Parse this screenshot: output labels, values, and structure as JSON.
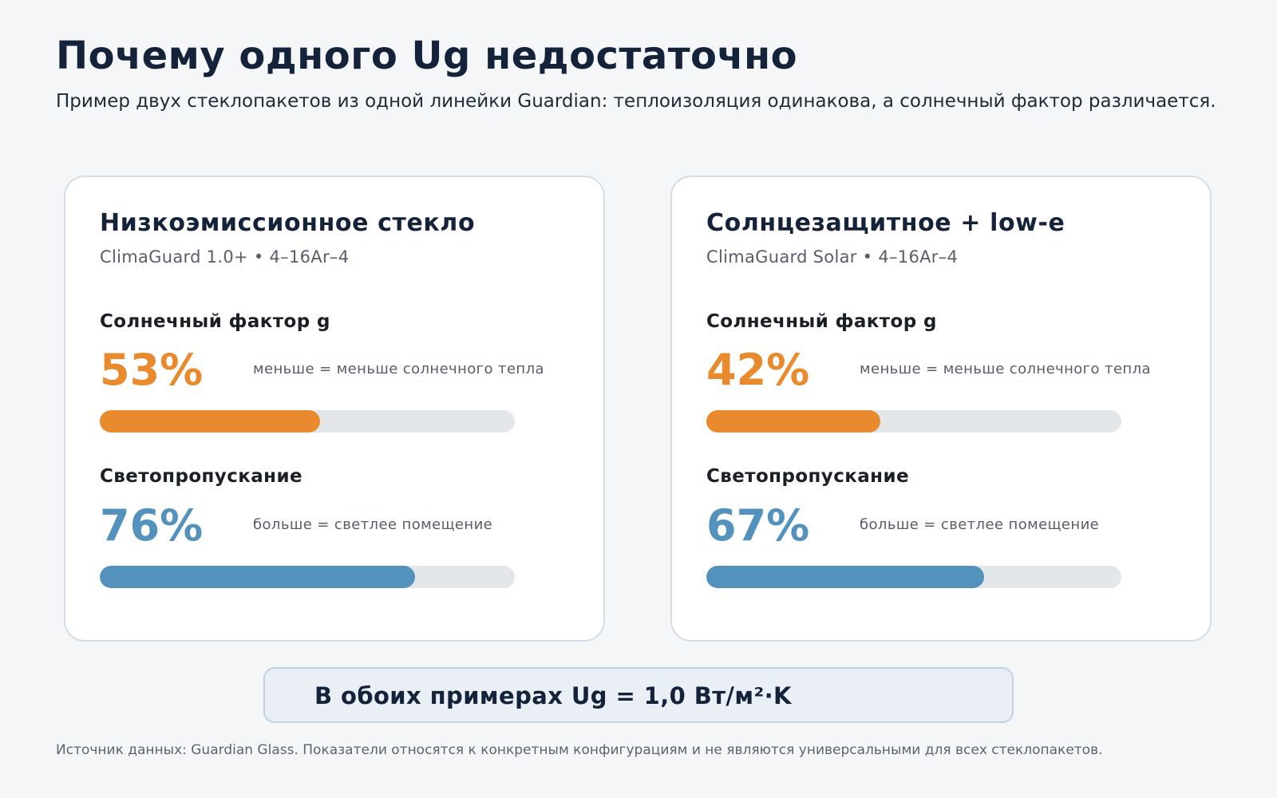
{
  "header": {
    "title": "Почему одного Ug недостаточно",
    "subtitle": "Пример двух стеклопакетов из одной линейки Guardian: теплоизоляция одинакова, а солнечный фактор различается."
  },
  "cards": [
    {
      "title": "Низкоэмиссионное стекло",
      "subtitle": "ClimaGuard 1.0+ • 4–16Ar–4",
      "solar": {
        "label": "Солнечный фактор g",
        "value": "53%",
        "fraction": 0.53,
        "note": "меньше = меньше солнечного тепла"
      },
      "light": {
        "label": "Светопропускание",
        "value": "76%",
        "fraction": 0.76,
        "note": "больше = светлее помещение"
      }
    },
    {
      "title": "Солнцезащитное + low-e",
      "subtitle": "ClimaGuard Solar • 4–16Ar–4",
      "solar": {
        "label": "Солнечный фактор g",
        "value": "42%",
        "fraction": 0.42,
        "note": "меньше = меньше солнечного тепла"
      },
      "light": {
        "label": "Светопропускание",
        "value": "67%",
        "fraction": 0.67,
        "note": "больше = светлее помещение"
      }
    }
  ],
  "summary": {
    "text": "В обоих примерах Ug = 1,0 Вт/м²·K"
  },
  "footnote": "Источник данных: Guardian Glass. Показатели относятся к конкретным конфигурациям и не являются универсальными для всех стеклопакетов.",
  "colors": {
    "solar": "#e88a2d",
    "light": "#5392bd",
    "title": "#14233a",
    "track": "#e3e7ea"
  }
}
